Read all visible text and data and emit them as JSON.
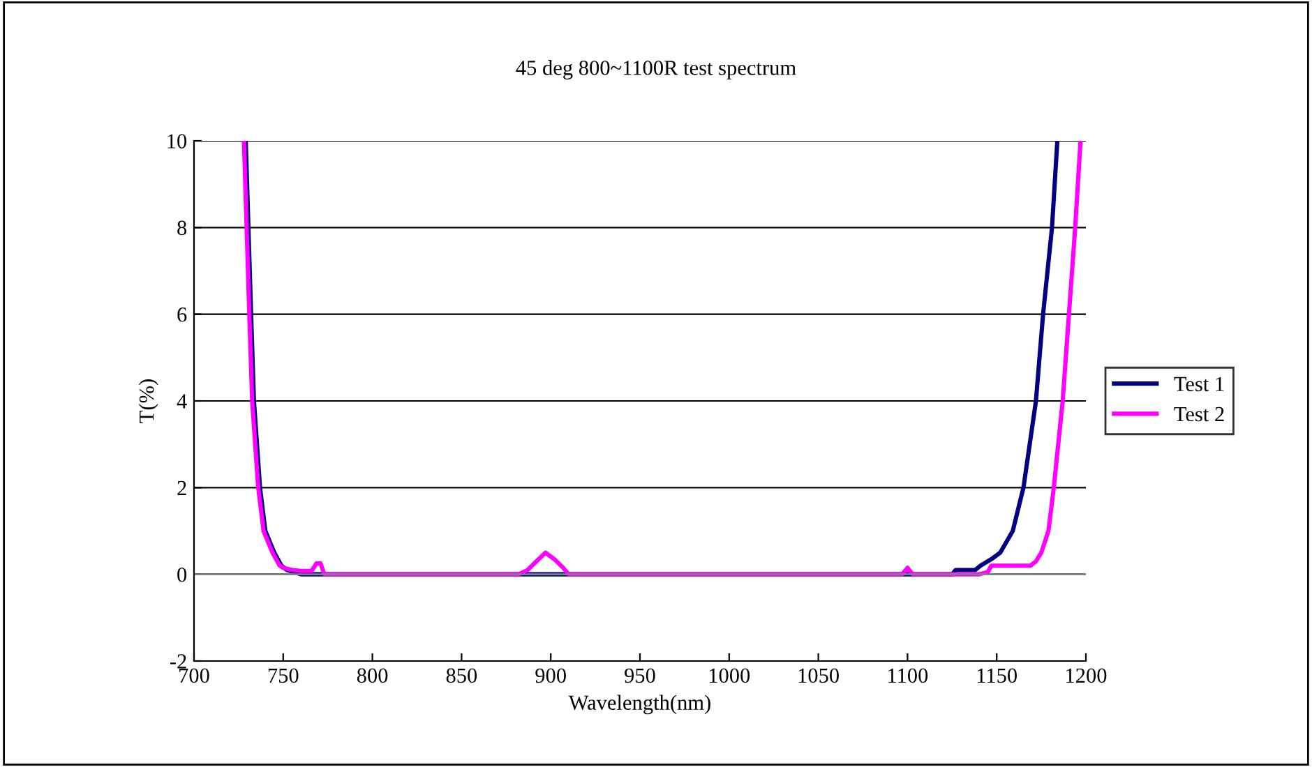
{
  "chart_data": {
    "type": "line",
    "title": "45 deg 800~1100R test spectrum",
    "xlabel": "Wavelength(nm)",
    "ylabel": "T(%)",
    "xlim": [
      700,
      1200
    ],
    "xticks": [
      700,
      750,
      800,
      850,
      900,
      950,
      1000,
      1050,
      1100,
      1150,
      1200
    ],
    "ylim": [
      -2,
      10
    ],
    "yticks": [
      -2,
      0,
      2,
      4,
      6,
      8,
      10
    ],
    "grid": "y",
    "legend": "right",
    "marker": "none",
    "line_style": "solid",
    "series": [
      {
        "name": "Test 1",
        "color": "#000080",
        "x": [
          729,
          732,
          733.6,
          737,
          740,
          745,
          749,
          752,
          756,
          760,
          770,
          800,
          900,
          1000,
          1100,
          1125,
          1127,
          1138,
          1141,
          1147,
          1152,
          1159,
          1165,
          1172,
          1176,
          1181,
          1184
        ],
        "values": [
          10,
          6,
          4,
          2,
          1,
          0.5,
          0.2,
          0.1,
          0.05,
          0,
          0,
          0,
          0,
          0,
          0,
          0,
          0.1,
          0.1,
          0.2,
          0.35,
          0.5,
          1,
          2,
          4,
          6,
          8,
          10
        ]
      },
      {
        "name": "Test 2",
        "color": "#ff00ff",
        "x": [
          728,
          731,
          732.6,
          736,
          739,
          744,
          748,
          750,
          755,
          760,
          766,
          768.6,
          771,
          773,
          800,
          882,
          887,
          892,
          897,
          902,
          907,
          910,
          950,
          1000,
          1097,
          1100,
          1103,
          1140,
          1145,
          1147,
          1169,
          1172,
          1175,
          1179,
          1182,
          1187,
          1190.5,
          1194,
          1197
        ],
        "values": [
          10,
          6,
          4,
          2,
          1,
          0.5,
          0.2,
          0.15,
          0.1,
          0.08,
          0.08,
          0.25,
          0.25,
          0,
          0,
          0,
          0.1,
          0.3,
          0.5,
          0.35,
          0.15,
          0,
          0,
          0,
          0,
          0.15,
          0,
          0,
          0.05,
          0.2,
          0.2,
          0.3,
          0.5,
          1,
          2,
          4,
          6,
          8,
          10
        ]
      }
    ]
  }
}
